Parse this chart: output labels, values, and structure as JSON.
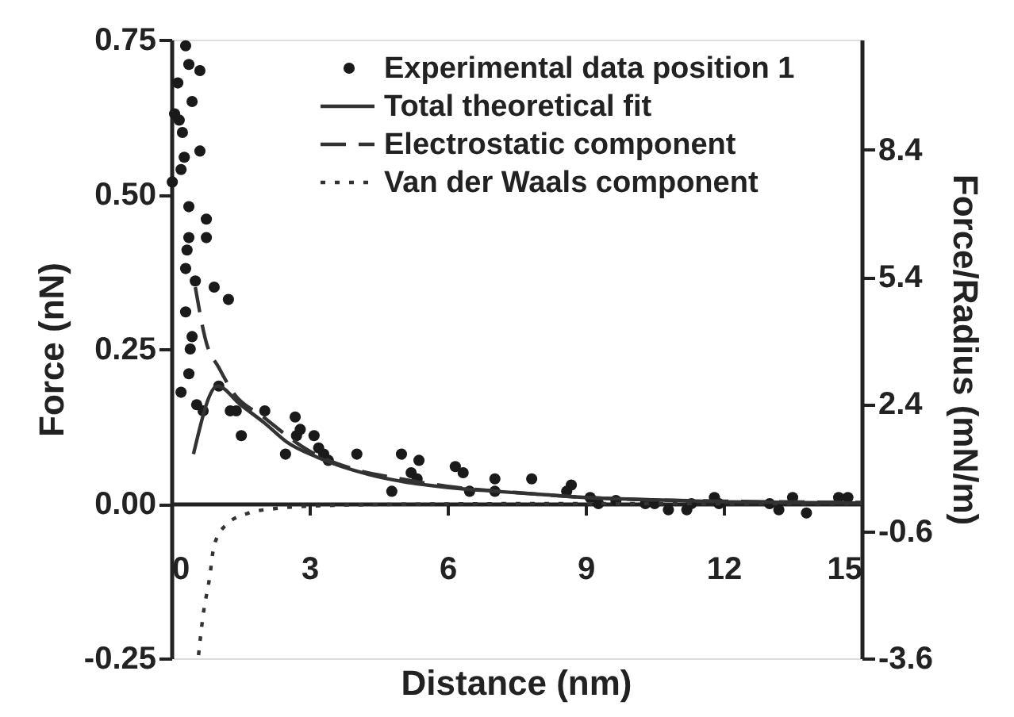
{
  "chart_data": {
    "type": "scatter",
    "xlabel": "Distance (nm)",
    "ylabel": "Force (nN)",
    "y2label": "Force/Radius (mN/m)",
    "xlim": [
      0,
      15
    ],
    "xticks": [
      0,
      3,
      6,
      9,
      12,
      15
    ],
    "ylim": [
      -0.25,
      0.75
    ],
    "yticks": [
      {
        "value": -0.25,
        "label": "-0.25"
      },
      {
        "value": 0,
        "label": "0.00"
      },
      {
        "value": 0.25,
        "label": "0.25"
      },
      {
        "value": 0.5,
        "label": "0.50"
      },
      {
        "value": 0.75,
        "label": "0.75"
      }
    ],
    "y2lim": [
      -3.6,
      11.0
    ],
    "y2ticks": [
      {
        "value": -3.6,
        "label": "-3.6"
      },
      {
        "value": -0.6,
        "label": "-0.6"
      },
      {
        "value": 2.4,
        "label": "2.4"
      },
      {
        "value": 5.4,
        "label": "5.4"
      },
      {
        "value": 8.4,
        "label": "8.4"
      }
    ],
    "grid": false,
    "legend": "top right",
    "series": [
      {
        "name": "Experimental data position 1",
        "marker": "circle",
        "color": "#1a1a1a",
        "x": [
          0.31,
          0.38,
          0.62,
          0.14,
          0.45,
          0.07,
          0.17,
          0.24,
          0.62,
          0.28,
          0.21,
          0.02,
          0.38,
          0.76,
          0.38,
          0.76,
          0.34,
          0.31,
          0.52,
          0.93,
          1.24,
          0.31,
          0.45,
          0.41,
          0.38,
          0.21,
          0.55,
          0.69,
          1.03,
          1.28,
          1.41,
          1.52,
          2.03,
          2.48,
          2.69,
          2.8,
          2.72,
          3.1,
          3.2,
          3.31,
          3.41,
          4.03,
          4.79,
          5.0,
          5.38,
          5.21,
          5.34,
          6.17,
          6.34,
          6.48,
          7.03,
          7.03,
          7.83,
          8.69,
          8.59,
          9.1,
          9.28,
          9.66,
          10.3,
          10.5,
          10.8,
          11.2,
          11.3,
          11.8,
          11.9,
          13.0,
          13.2,
          13.5,
          13.8,
          14.5,
          14.7
        ],
        "values": [
          0.74,
          0.71,
          0.7,
          0.68,
          0.65,
          0.63,
          0.62,
          0.6,
          0.57,
          0.56,
          0.54,
          0.52,
          0.48,
          0.46,
          0.43,
          0.43,
          0.41,
          0.38,
          0.36,
          0.35,
          0.33,
          0.31,
          0.27,
          0.25,
          0.21,
          0.18,
          0.16,
          0.15,
          0.19,
          0.15,
          0.15,
          0.11,
          0.15,
          0.08,
          0.14,
          0.12,
          0.11,
          0.11,
          0.09,
          0.08,
          0.07,
          0.08,
          0.02,
          0.08,
          0.07,
          0.05,
          0.04,
          0.06,
          0.05,
          0.02,
          0.04,
          0.02,
          0.04,
          0.03,
          0.02,
          0.01,
          0.0,
          0.005,
          0.0,
          0.0,
          -0.01,
          -0.01,
          0.0,
          0.01,
          0.0,
          0.0,
          -0.01,
          0.01,
          -0.015,
          0.01,
          0.01
        ]
      },
      {
        "name": "Total theoretical fit",
        "type": "line",
        "line_style": "solid",
        "color": "#333333",
        "x": [
          0.48,
          1.0,
          1.5,
          2.03,
          2.5,
          3.17,
          4.3,
          5.0,
          6.03,
          7.03,
          8.0,
          9.0,
          10.5,
          12.0,
          13.5,
          15.0
        ],
        "values": [
          0.08,
          0.19,
          0.16,
          0.13,
          0.1,
          0.075,
          0.047,
          0.036,
          0.026,
          0.02,
          0.015,
          0.01,
          0.006,
          0.003,
          0.002,
          0.001
        ]
      },
      {
        "name": "Electrostatic component",
        "type": "line",
        "line_style": "dashed",
        "color": "#333333",
        "x": [
          0.52,
          0.76,
          1.03,
          1.34,
          2.0,
          3.0,
          4.0,
          5.0,
          6.0,
          7.5,
          9.0,
          12.0,
          15.0
        ],
        "values": [
          0.35,
          0.26,
          0.22,
          0.18,
          0.14,
          0.085,
          0.055,
          0.04,
          0.028,
          0.018,
          0.01,
          0.004,
          0.002
        ]
      },
      {
        "name": "Van der Waals component",
        "type": "line",
        "line_style": "dotted",
        "color": "#333333",
        "x": [
          0.59,
          0.69,
          0.83,
          0.93,
          1.21,
          1.69,
          2.24,
          3.0,
          5.0,
          8.0,
          15.0
        ],
        "values": [
          -0.245,
          -0.18,
          -0.12,
          -0.067,
          -0.033,
          -0.015,
          -0.008,
          -0.004,
          -0.001,
          0.0,
          0.0
        ]
      }
    ]
  }
}
